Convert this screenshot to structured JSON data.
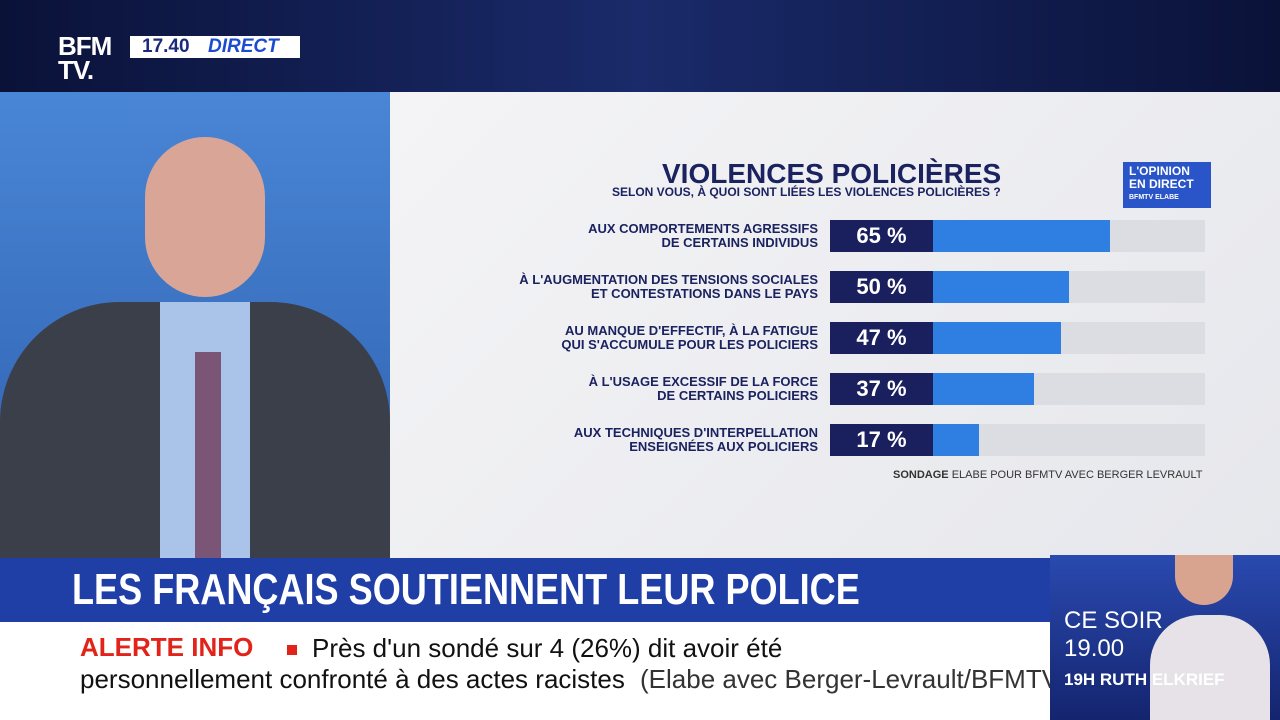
{
  "logo": {
    "line1": "BFM",
    "line2": "TV."
  },
  "clock": {
    "time": "17.40",
    "status": "DIRECT"
  },
  "badge": {
    "line1": "L'OPINION",
    "line2": "EN DIRECT",
    "partner1": "BFMTV",
    "partner2": "ELABE"
  },
  "chart_data": {
    "type": "bar",
    "orientation": "horizontal",
    "title": "VIOLENCES POLICIÈRES",
    "subtitle": "SELON VOUS, À QUOI SONT LIÉES LES VIOLENCES POLICIÈRES ?",
    "categories": [
      "AUX COMPORTEMENTS AGRESSIFS\nDE CERTAINS INDIVIDUS",
      "À L'AUGMENTATION DES TENSIONS SOCIALES\nET CONTESTATIONS DANS LE PAYS",
      "AU MANQUE D'EFFECTIF, À LA FATIGUE\nQUI S'ACCUMULE POUR LES POLICIERS",
      "À L'USAGE EXCESSIF DE LA FORCE\nDE CERTAINS POLICIERS",
      "AUX TECHNIQUES D'INTERPELLATION\nENSEIGNÉES AUX POLICIERS"
    ],
    "values": [
      65,
      50,
      47,
      37,
      17
    ],
    "value_labels": [
      "65 %",
      "50 %",
      "47 %",
      "37 %",
      "17 %"
    ],
    "color": "#2f7fe3",
    "xlim": [
      0,
      100
    ],
    "source_label": "SONDAGE",
    "source": "ELABE POUR BFMTV AVEC BERGER LEVRAULT"
  },
  "headline": "LES FRANÇAIS SOUTIENNENT LEUR POLICE",
  "ticker": {
    "tag": "ALERTE INFO",
    "line1": "Près d'un sondé sur 4 (26%) dit avoir été",
    "line2": "personnellement confronté à des actes racistes",
    "credit": "(Elabe avec Berger-Levrault/BFMTV)"
  },
  "promo": {
    "label": "CE SOIR",
    "time": "19.00",
    "show": "19H RUTH ELKRIEF"
  }
}
